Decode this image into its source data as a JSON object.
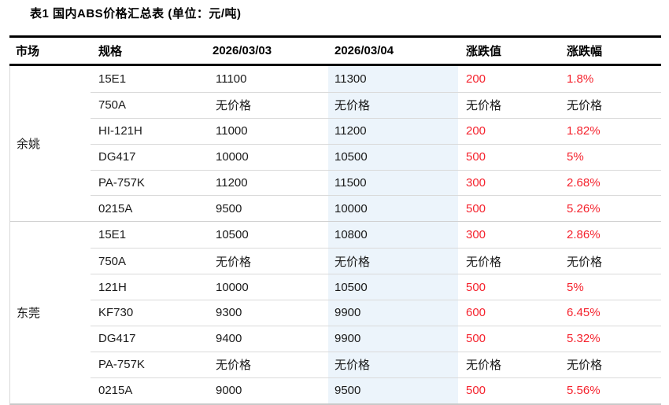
{
  "chart_data": {
    "type": "table",
    "title": "表1 国内ABS价格汇总表 (单位：元/吨)",
    "columns": [
      "市场",
      "规格",
      "2026/03/03",
      "2026/03/04",
      "涨跌值",
      "涨跌幅"
    ],
    "highlighted_column": "2026/03/04",
    "no_price_label": "无价格",
    "sections": [
      {
        "market": "余姚",
        "rows": [
          {
            "spec": "15E1",
            "price_0303": "11100",
            "price_0304": "11300",
            "change": "200",
            "change_pct": "1.8%",
            "has_price": true
          },
          {
            "spec": "750A",
            "price_0303": "无价格",
            "price_0304": "无价格",
            "change": "无价格",
            "change_pct": "无价格",
            "has_price": false
          },
          {
            "spec": "HI-121H",
            "price_0303": "11000",
            "price_0304": "11200",
            "change": "200",
            "change_pct": "1.82%",
            "has_price": true
          },
          {
            "spec": "DG417",
            "price_0303": "10000",
            "price_0304": "10500",
            "change": "500",
            "change_pct": "5%",
            "has_price": true
          },
          {
            "spec": "PA-757K",
            "price_0303": "11200",
            "price_0304": "11500",
            "change": "300",
            "change_pct": "2.68%",
            "has_price": true
          },
          {
            "spec": "0215A",
            "price_0303": "9500",
            "price_0304": "10000",
            "change": "500",
            "change_pct": "5.26%",
            "has_price": true
          }
        ]
      },
      {
        "market": "东莞",
        "rows": [
          {
            "spec": "15E1",
            "price_0303": "10500",
            "price_0304": "10800",
            "change": "300",
            "change_pct": "2.86%",
            "has_price": true
          },
          {
            "spec": "750A",
            "price_0303": "无价格",
            "price_0304": "无价格",
            "change": "无价格",
            "change_pct": "无价格",
            "has_price": false
          },
          {
            "spec": "121H",
            "price_0303": "10000",
            "price_0304": "10500",
            "change": "500",
            "change_pct": "5%",
            "has_price": true
          },
          {
            "spec": "KF730",
            "price_0303": "9300",
            "price_0304": "9900",
            "change": "600",
            "change_pct": "6.45%",
            "has_price": true
          },
          {
            "spec": "DG417",
            "price_0303": "9400",
            "price_0304": "9900",
            "change": "500",
            "change_pct": "5.32%",
            "has_price": true
          },
          {
            "spec": "PA-757K",
            "price_0303": "无价格",
            "price_0304": "无价格",
            "change": "无价格",
            "change_pct": "无价格",
            "has_price": false
          },
          {
            "spec": "0215A",
            "price_0303": "9000",
            "price_0304": "9500",
            "change": "500",
            "change_pct": "5.56%",
            "has_price": true
          }
        ]
      }
    ]
  },
  "colors": {
    "up_red": "#f5222d",
    "highlight_column_bg": "#ecf4fb",
    "header_border_dark": "#000000",
    "row_separator": "#dadada",
    "table_border_light": "#d9d9d9"
  }
}
